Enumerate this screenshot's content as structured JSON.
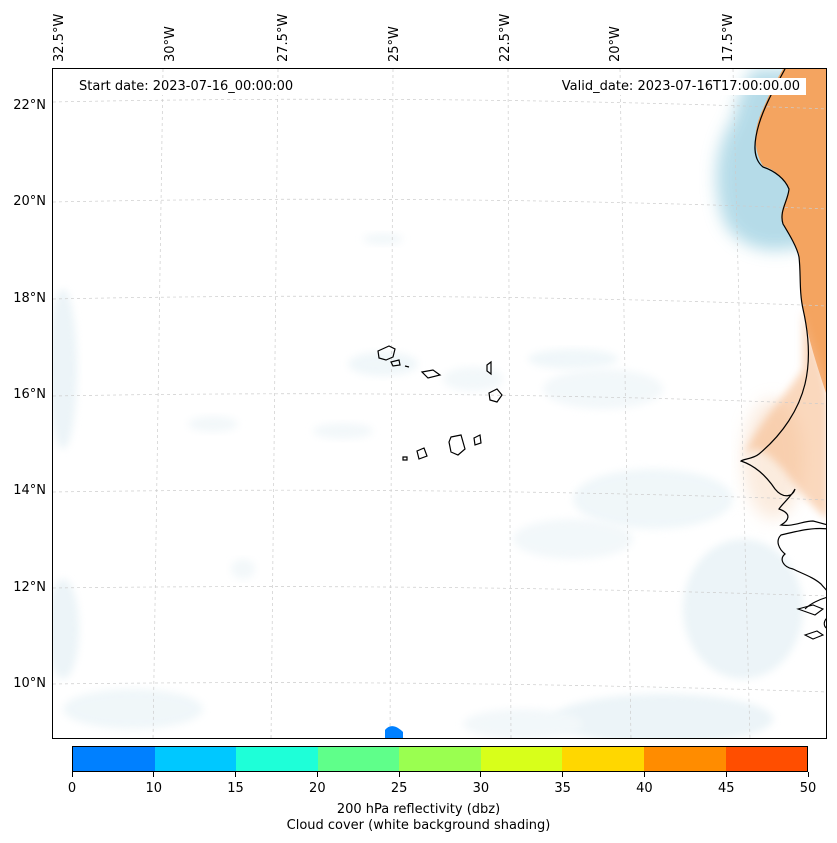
{
  "map": {
    "start_date": "Start date: 2023-07-16_00:00:00",
    "valid_date": "Valid_date: 2023-07-16T17:00:00.00",
    "longitude_labels": [
      "32.5°W",
      "30°W",
      "27.5°W",
      "25°W",
      "22.5°W",
      "20°W",
      "17.5°W"
    ],
    "latitude_labels": [
      "22°N",
      "20°N",
      "18°N",
      "16°N",
      "14°N",
      "12°N",
      "10°N"
    ],
    "gridlines": true
  },
  "colorbar": {
    "ticks": [
      "0",
      "10",
      "15",
      "20",
      "25",
      "30",
      "35",
      "40",
      "45",
      "50"
    ],
    "colors": [
      "#0080ff",
      "#00c8ff",
      "#1effd8",
      "#5fff8a",
      "#9aff50",
      "#d8ff1a",
      "#ffd700",
      "#ff8c00",
      "#ff4e00"
    ],
    "label_line1": "200 hPa reflectivity (dbz)",
    "label_line2": "Cloud cover (white background shading)"
  },
  "colors": {
    "land_shading": "#f4a460",
    "cloud_blue": "#add8e6",
    "coastline": "#000000"
  }
}
